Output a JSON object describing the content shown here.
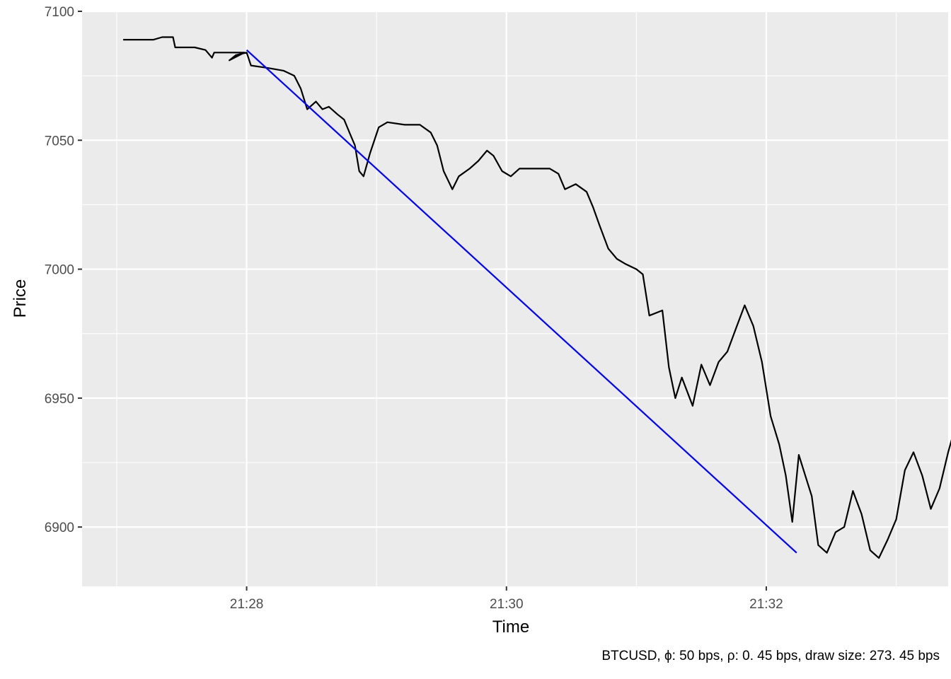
{
  "chart_data": {
    "type": "line",
    "xlabel": "Time",
    "ylabel": "Price",
    "caption": "BTCUSD, ϕ: 50 bps, ρ: 0. 45 bps, draw size: 273. 45 bps",
    "xlim": [
      "21:26:44",
      "21:33:24"
    ],
    "ylim": [
      6877,
      7100
    ],
    "x_ticks": [
      {
        "t": "21:28:00",
        "label": "21:28"
      },
      {
        "t": "21:30:00",
        "label": "21:30"
      },
      {
        "t": "21:32:00",
        "label": "21:32"
      }
    ],
    "x_minor": [
      "21:27:00",
      "21:29:00",
      "21:31:00",
      "21:33:00"
    ],
    "y_ticks": [
      6900,
      6950,
      7000,
      7050,
      7100
    ],
    "y_minor": [
      6925,
      6975,
      7025,
      7075
    ],
    "grid": true,
    "background": "#ebebeb",
    "series": [
      {
        "color": "#000000",
        "points": [
          [
            "21:27:03",
            7089
          ],
          [
            "21:27:17",
            7089
          ],
          [
            "21:27:21",
            7090
          ],
          [
            "21:27:26",
            7090
          ],
          [
            "21:27:27",
            7086
          ],
          [
            "21:27:36",
            7086
          ],
          [
            "21:27:41",
            7085
          ],
          [
            "21:27:44",
            7082
          ],
          [
            "21:27:45",
            7084
          ],
          [
            "21:27:59",
            7084
          ],
          [
            "21:27:52",
            7081
          ],
          [
            "21:27:55",
            7083
          ],
          [
            "21:28:00",
            7084
          ],
          [
            "21:28:02",
            7079
          ],
          [
            "21:28:10",
            7078
          ],
          [
            "21:28:17",
            7077
          ],
          [
            "21:28:22",
            7075
          ],
          [
            "21:28:25",
            7070
          ],
          [
            "21:28:28",
            7062
          ],
          [
            "21:28:32",
            7065
          ],
          [
            "21:28:35",
            7062
          ],
          [
            "21:28:38",
            7063
          ],
          [
            "21:28:42",
            7060
          ],
          [
            "21:28:45",
            7058
          ],
          [
            "21:28:48",
            7052
          ],
          [
            "21:28:50",
            7048
          ],
          [
            "21:28:52",
            7038
          ],
          [
            "21:28:54",
            7036
          ],
          [
            "21:28:57",
            7045
          ],
          [
            "21:29:01",
            7055
          ],
          [
            "21:29:05",
            7057
          ],
          [
            "21:29:13",
            7056
          ],
          [
            "21:29:20",
            7056
          ],
          [
            "21:29:25",
            7053
          ],
          [
            "21:29:28",
            7048
          ],
          [
            "21:29:31",
            7038
          ],
          [
            "21:29:35",
            7031
          ],
          [
            "21:29:38",
            7036
          ],
          [
            "21:29:43",
            7039
          ],
          [
            "21:29:47",
            7042
          ],
          [
            "21:29:51",
            7046
          ],
          [
            "21:29:54",
            7044
          ],
          [
            "21:29:58",
            7038
          ],
          [
            "21:30:02",
            7036
          ],
          [
            "21:30:06",
            7039
          ],
          [
            "21:30:20",
            7039
          ],
          [
            "21:30:24",
            7037
          ],
          [
            "21:30:27",
            7031
          ],
          [
            "21:30:32",
            7033
          ],
          [
            "21:30:37",
            7030
          ],
          [
            "21:30:40",
            7024
          ],
          [
            "21:30:43",
            7017
          ],
          [
            "21:30:47",
            7008
          ],
          [
            "21:30:51",
            7004
          ],
          [
            "21:30:55",
            7002
          ],
          [
            "21:31:00",
            7000
          ],
          [
            "21:31:03",
            6998
          ],
          [
            "21:31:06",
            6982
          ],
          [
            "21:31:12",
            6984
          ],
          [
            "21:31:15",
            6962
          ],
          [
            "21:31:18",
            6950
          ],
          [
            "21:31:21",
            6958
          ],
          [
            "21:31:26",
            6947
          ],
          [
            "21:31:30",
            6963
          ],
          [
            "21:31:34",
            6955
          ],
          [
            "21:31:38",
            6964
          ],
          [
            "21:31:42",
            6968
          ],
          [
            "21:31:46",
            6977
          ],
          [
            "21:31:50",
            6986
          ],
          [
            "21:31:54",
            6978
          ],
          [
            "21:31:58",
            6964
          ],
          [
            "21:32:02",
            6943
          ],
          [
            "21:32:06",
            6932
          ],
          [
            "21:32:09",
            6920
          ],
          [
            "21:32:12",
            6902
          ],
          [
            "21:32:15",
            6928
          ],
          [
            "21:32:18",
            6920
          ],
          [
            "21:32:21",
            6912
          ],
          [
            "21:32:24",
            6893
          ],
          [
            "21:32:28",
            6890
          ],
          [
            "21:32:32",
            6898
          ],
          [
            "21:32:36",
            6900
          ],
          [
            "21:32:40",
            6914
          ],
          [
            "21:32:44",
            6905
          ],
          [
            "21:32:48",
            6891
          ],
          [
            "21:32:52",
            6888
          ],
          [
            "21:32:56",
            6895
          ],
          [
            "21:33:00",
            6903
          ],
          [
            "21:33:04",
            6922
          ],
          [
            "21:33:08",
            6929
          ],
          [
            "21:33:12",
            6920
          ],
          [
            "21:33:16",
            6907
          ],
          [
            "21:33:20",
            6915
          ],
          [
            "21:33:24",
            6929
          ],
          [
            "21:33:28",
            6941
          ],
          [
            "21:33:32",
            6947
          ]
        ]
      },
      {
        "color": "#0000ff",
        "points": [
          [
            "21:28:00",
            7085
          ],
          [
            "21:32:14",
            6890
          ]
        ]
      }
    ]
  }
}
